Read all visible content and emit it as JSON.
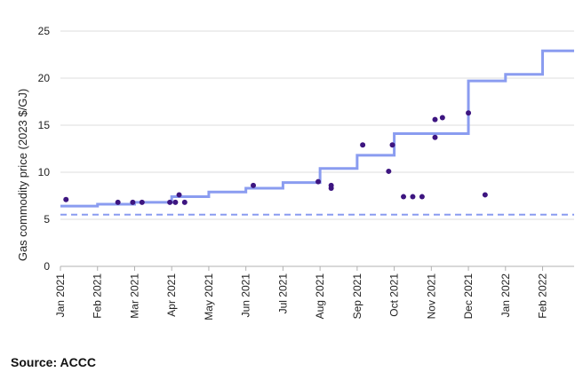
{
  "chart_data": {
    "type": "line",
    "ylabel": "Gas commodity price (2023 $/GJ)",
    "ylim": [
      0,
      25
    ],
    "yticks": [
      0,
      5,
      10,
      15,
      20,
      25
    ],
    "xlim": [
      0,
      13.85
    ],
    "xticks": [
      {
        "x": 0,
        "label": "Jan 2021"
      },
      {
        "x": 1,
        "label": "Feb 2021"
      },
      {
        "x": 2,
        "label": "Mar 2021"
      },
      {
        "x": 3,
        "label": "Apr 2021"
      },
      {
        "x": 4,
        "label": "May 2021"
      },
      {
        "x": 5,
        "label": "Jun 2021"
      },
      {
        "x": 6,
        "label": "Jul 2021"
      },
      {
        "x": 7,
        "label": "Aug 2021"
      },
      {
        "x": 8,
        "label": "Sep 2021"
      },
      {
        "x": 9,
        "label": "Oct 2021"
      },
      {
        "x": 10,
        "label": "Nov 2021"
      },
      {
        "x": 11,
        "label": "Dec 2021"
      },
      {
        "x": 12,
        "label": "Jan 2022"
      },
      {
        "x": 13,
        "label": "Feb 2022"
      }
    ],
    "grid": "horizontal",
    "series": [
      {
        "kind": "step",
        "color": "#8a9cf0",
        "points": [
          [
            0,
            6.4
          ],
          [
            1,
            6.6
          ],
          [
            2,
            6.8
          ],
          [
            3,
            7.0
          ],
          [
            3.0,
            7.4
          ],
          [
            4,
            7.9
          ],
          [
            5,
            8.3
          ],
          [
            6,
            8.9
          ],
          [
            7,
            10.4
          ],
          [
            8,
            11.8
          ],
          [
            9,
            14.1
          ],
          [
            11,
            19.7
          ],
          [
            12,
            20.4
          ],
          [
            13,
            22.9
          ],
          [
            13.85,
            22.9
          ]
        ]
      },
      {
        "kind": "dashed",
        "color": "#8a9cf0",
        "y": 5.5
      },
      {
        "kind": "scatter",
        "color": "#3d1580",
        "points": [
          [
            0.15,
            7.1
          ],
          [
            1.55,
            6.8
          ],
          [
            1.95,
            6.8
          ],
          [
            2.2,
            6.8
          ],
          [
            2.95,
            6.8
          ],
          [
            3.1,
            6.8
          ],
          [
            3.2,
            7.6
          ],
          [
            3.35,
            6.8
          ],
          [
            5.2,
            8.6
          ],
          [
            6.95,
            9.0
          ],
          [
            7.3,
            8.6
          ],
          [
            7.3,
            8.3
          ],
          [
            8.15,
            12.9
          ],
          [
            8.85,
            10.1
          ],
          [
            8.95,
            12.9
          ],
          [
            9.25,
            7.4
          ],
          [
            9.5,
            7.4
          ],
          [
            9.75,
            7.4
          ],
          [
            10.1,
            15.6
          ],
          [
            10.1,
            13.7
          ],
          [
            10.3,
            15.8
          ],
          [
            11.0,
            16.3
          ],
          [
            11.45,
            7.6
          ]
        ]
      }
    ]
  },
  "source_text": "Source: ACCC"
}
